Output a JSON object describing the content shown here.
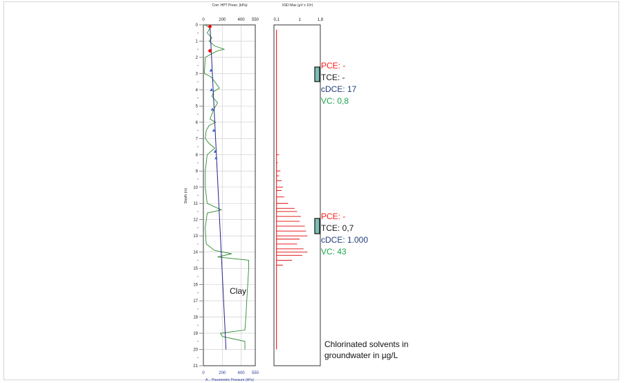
{
  "chart_data": [
    {
      "type": "line",
      "panel": "left",
      "top_axis_label": "Corr. HPT Press. (kPa)",
      "top_ticks": [
        "0",
        "200",
        "400",
        "550"
      ],
      "bottom_axis_label": "A... Piezometric Pressure (kPa)",
      "bottom_ticks": [
        "0",
        "200",
        "400",
        "550"
      ],
      "xlim": [
        0,
        550
      ],
      "ylabel": "Depth (m)",
      "ylim": [
        0,
        21
      ],
      "y_ticks": [
        "0",
        "1",
        "2",
        "3",
        "4",
        "5",
        "6",
        "7",
        "8",
        "9",
        "10",
        "11",
        "12",
        "13",
        "14",
        "15",
        "16",
        "17",
        "18",
        "19",
        "20",
        "21"
      ],
      "grid": true,
      "series": [
        {
          "color": "#2e8b2e",
          "points": [
            [
              20,
              0
            ],
            [
              70,
              0.2
            ],
            [
              40,
              0.5
            ],
            [
              90,
              0.8
            ],
            [
              60,
              1.0
            ],
            [
              120,
              1.3
            ],
            [
              220,
              1.5
            ],
            [
              150,
              1.6
            ],
            [
              80,
              1.8
            ],
            [
              20,
              2.0
            ],
            [
              10,
              3.0
            ],
            [
              80,
              3.2
            ],
            [
              120,
              3.5
            ],
            [
              170,
              3.9
            ],
            [
              110,
              4.1
            ],
            [
              90,
              4.4
            ],
            [
              150,
              4.8
            ],
            [
              110,
              5.2
            ],
            [
              90,
              5.5
            ],
            [
              70,
              5.8
            ],
            [
              130,
              6.0
            ],
            [
              60,
              6.2
            ],
            [
              30,
              6.5
            ],
            [
              20,
              7.0
            ],
            [
              60,
              7.3
            ],
            [
              120,
              7.6
            ],
            [
              80,
              7.8
            ],
            [
              40,
              8.0
            ],
            [
              20,
              9.0
            ],
            [
              20,
              10.0
            ],
            [
              40,
              11.0
            ],
            [
              190,
              11.4
            ],
            [
              40,
              11.6
            ],
            [
              20,
              12.5
            ],
            [
              30,
              13.5
            ],
            [
              120,
              13.9
            ],
            [
              300,
              14.1
            ],
            [
              150,
              14.3
            ],
            [
              480,
              14.5
            ],
            [
              480,
              15.0
            ],
            [
              470,
              16.0
            ],
            [
              460,
              17.0
            ],
            [
              450,
              18.0
            ],
            [
              440,
              18.8
            ],
            [
              180,
              19.0
            ],
            [
              200,
              19.2
            ],
            [
              440,
              19.5
            ],
            [
              440,
              20.0
            ]
          ]
        },
        {
          "color": "#20208a",
          "points": [
            [
              70,
              0.0
            ],
            [
              240,
              20.0
            ]
          ]
        },
        {
          "color": "#3a63c6",
          "markers": "triangle",
          "points": [
            [
              80,
              2.8
            ],
            [
              85,
              4.0
            ],
            [
              95,
              5.2
            ],
            [
              110,
              6.5
            ],
            [
              125,
              7.8
            ],
            [
              135,
              8.2
            ]
          ]
        },
        {
          "color": "#ff0000",
          "markers": "diamond",
          "points": [
            [
              70,
              0.1
            ],
            [
              70,
              1.6
            ]
          ]
        }
      ]
    },
    {
      "type": "line",
      "panel": "right",
      "top_axis_label": "XSD Max (µV x 10⁶)",
      "top_ticks": [
        "0,1",
        "1",
        "1,8"
      ],
      "xlim": [
        0,
        1.8
      ],
      "ylim": [
        0,
        21
      ],
      "grid": false,
      "series": [
        {
          "color": "#e00000",
          "spikes": [
            [
              8.0,
              0.2
            ],
            [
              8.5,
              0.15
            ],
            [
              9.0,
              0.25
            ],
            [
              9.3,
              0.2
            ],
            [
              9.6,
              0.3
            ],
            [
              10.0,
              0.35
            ],
            [
              10.2,
              0.3
            ],
            [
              10.6,
              0.4
            ],
            [
              11.0,
              0.55
            ],
            [
              11.3,
              0.8
            ],
            [
              11.5,
              0.9
            ],
            [
              11.8,
              1.05
            ],
            [
              12.1,
              1.0
            ],
            [
              12.4,
              1.2
            ],
            [
              12.7,
              1.25
            ],
            [
              13.0,
              1.3
            ],
            [
              13.2,
              1.0
            ],
            [
              13.5,
              0.9
            ],
            [
              13.8,
              1.15
            ],
            [
              14.0,
              1.3
            ],
            [
              14.2,
              1.1
            ],
            [
              14.5,
              0.7
            ],
            [
              14.8,
              0.35
            ],
            [
              15.2,
              0.1
            ]
          ]
        }
      ]
    }
  ],
  "annotations": [
    {
      "pce": "PCE: -",
      "tce": "TCE: -",
      "cdce": "cDCE: 17",
      "vc": "VC: 0,8"
    },
    {
      "pce": "PCE: -",
      "tce": "TCE: 0,7",
      "cdce": "cDCE: 1.000",
      "vc": "VC: 43"
    }
  ],
  "clay_label": "Clay",
  "note_lines": [
    "Chlorinated solvents in",
    "groundwater in µg/L"
  ],
  "colors": {
    "box": "#7bbfb5",
    "grid": "#c8c8c8"
  }
}
